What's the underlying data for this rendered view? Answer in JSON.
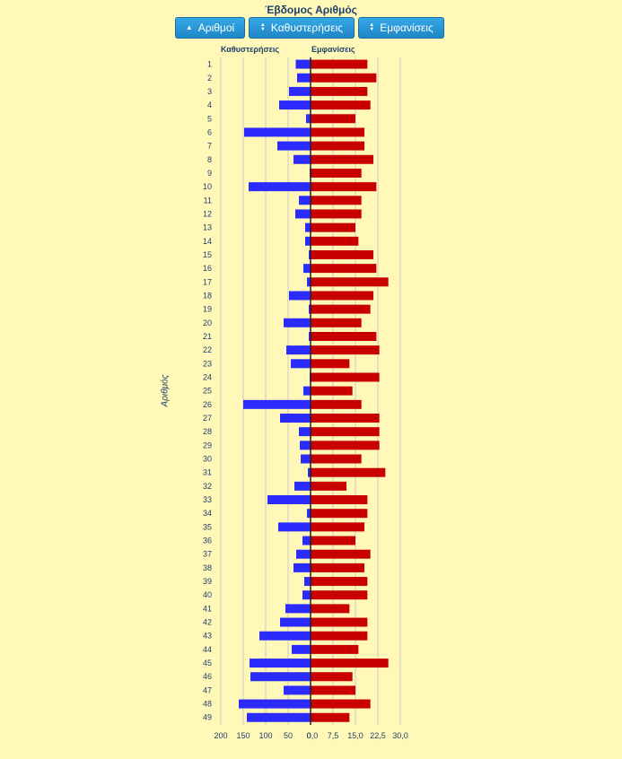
{
  "header": {
    "title": "Έβδομος Αριθμός",
    "buttons": {
      "numbers": "Αριθμοί",
      "delays": "Καθυστερήσεις",
      "appearances": "Εμφανίσεις"
    }
  },
  "chart_data": {
    "type": "bar",
    "title": "Έβδομος Αριθμός",
    "ylabel": "Αριθμός",
    "categories": [
      "1",
      "2",
      "3",
      "4",
      "5",
      "6",
      "7",
      "8",
      "9",
      "10",
      "11",
      "12",
      "13",
      "14",
      "15",
      "16",
      "17",
      "18",
      "19",
      "20",
      "21",
      "22",
      "23",
      "24",
      "25",
      "26",
      "27",
      "28",
      "29",
      "30",
      "31",
      "32",
      "33",
      "34",
      "35",
      "36",
      "37",
      "38",
      "39",
      "40",
      "41",
      "42",
      "43",
      "44",
      "45",
      "46",
      "47",
      "48",
      "49"
    ],
    "series": [
      {
        "name": "Καθυστερήσεις",
        "color": "#2b2bff",
        "axis_ticks": [
          "200",
          "150",
          "100",
          "50",
          "0"
        ],
        "xlim": [
          0,
          200
        ],
        "values": [
          33,
          30,
          48,
          70,
          10,
          148,
          74,
          38,
          2,
          138,
          26,
          34,
          12,
          12,
          4,
          16,
          8,
          48,
          4,
          60,
          4,
          54,
          44,
          2,
          16,
          150,
          68,
          26,
          24,
          22,
          6,
          36,
          96,
          8,
          72,
          18,
          32,
          38,
          14,
          18,
          56,
          68,
          114,
          42,
          136,
          134,
          60,
          160,
          142
        ]
      },
      {
        "name": "Εμφανίσεις",
        "color": "#c80000",
        "axis_ticks": [
          "0,0",
          "7,5",
          "15,0",
          "22,5",
          "30,0"
        ],
        "xlim": [
          0,
          30
        ],
        "values": [
          19,
          22,
          19,
          20,
          15,
          18,
          18,
          21,
          17,
          22,
          17,
          17,
          15,
          16,
          21,
          22,
          26,
          21,
          20,
          17,
          22,
          23,
          13,
          23,
          14,
          17,
          23,
          23,
          23,
          17,
          25,
          12,
          19,
          19,
          18,
          15,
          20,
          18,
          19,
          19,
          13,
          19,
          19,
          16,
          26,
          14,
          15,
          20,
          13
        ]
      }
    ]
  }
}
